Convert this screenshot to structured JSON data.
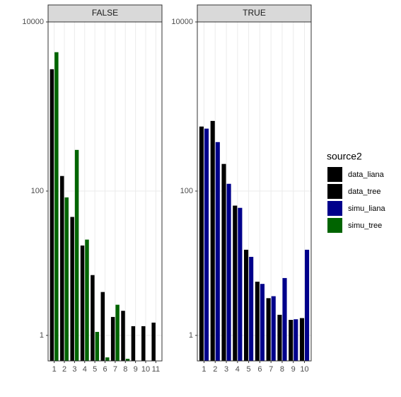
{
  "legend_title": "source2",
  "chart_data": [
    {
      "type": "bar",
      "title": "FALSE",
      "y_transform": "log1p",
      "grid": true,
      "categories": [
        "1",
        "2",
        "3",
        "4",
        "5",
        "6",
        "7",
        "8",
        "9",
        "10",
        "11"
      ],
      "ylim": [
        0,
        10000
      ],
      "yticks": [
        1,
        100,
        10000
      ],
      "series": [
        {
          "name": "data_tree",
          "color": "#000000",
          "values": [
            2767,
            151,
            49,
            22,
            9.3,
            5.5,
            2.3,
            2.9,
            1.57,
            1.57,
            1.83
          ]
        },
        {
          "name": "simu_tree",
          "color": "#006400",
          "values": [
            4395,
            84,
            308,
            26,
            1.2,
            0.1,
            3.6,
            0.06,
            null,
            null,
            null
          ]
        }
      ]
    },
    {
      "type": "bar",
      "title": "TRUE",
      "y_transform": "log1p",
      "grid": true,
      "categories": [
        "1",
        "2",
        "3",
        "4",
        "5",
        "6",
        "7",
        "8",
        "9",
        "10"
      ],
      "ylim": [
        0,
        10000
      ],
      "yticks": [
        1,
        100,
        10000
      ],
      "series": [
        {
          "name": "data_liana",
          "color": "#000000",
          "values": [
            582,
            678,
            210,
            67,
            19.5,
            7.6,
            4.5,
            2.5,
            2.05,
            2.2
          ]
        },
        {
          "name": "simu_liana",
          "color": "#00008b",
          "values": [
            550,
            381,
            122,
            63,
            15.9,
            7.1,
            4.8,
            8.5,
            2.1,
            19.5
          ]
        }
      ]
    }
  ]
}
